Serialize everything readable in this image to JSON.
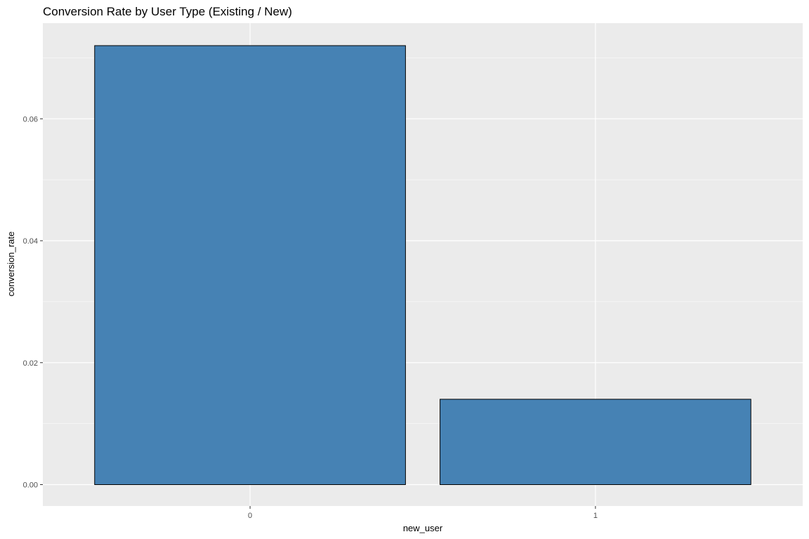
{
  "chart_data": {
    "type": "bar",
    "title": "Conversion Rate by User Type (Existing / New)",
    "xlabel": "new_user",
    "ylabel": "conversion_rate",
    "categories": [
      "0",
      "1"
    ],
    "values": [
      0.072,
      0.014
    ],
    "yticks": [
      "0.00",
      "0.02",
      "0.04",
      "0.06"
    ],
    "ylim": [
      0,
      0.072
    ],
    "grid": true,
    "legend": "none",
    "colors": {
      "bar_fill": "#4682B4",
      "bar_stroke": "#000000",
      "panel_background": "#EBEBEB",
      "grid": "#FFFFFF"
    }
  }
}
